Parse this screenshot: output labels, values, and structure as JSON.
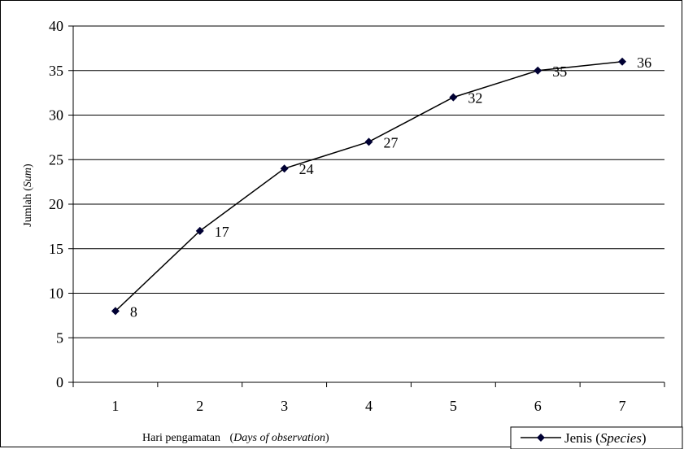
{
  "chart_data": {
    "type": "line",
    "x": [
      1,
      2,
      3,
      4,
      5,
      6,
      7
    ],
    "series": [
      {
        "name_main": "Jenis",
        "name_italic": "Species",
        "values": [
          8,
          17,
          24,
          27,
          32,
          35,
          36
        ],
        "color": "#000033"
      }
    ],
    "xlabel_main": "Hari pengamatan",
    "xlabel_italic": "Days of observation",
    "ylabel_main": "Jumlah",
    "ylabel_italic": "Sum",
    "ylim": [
      0,
      40
    ],
    "ytick_step": 5,
    "grid": true,
    "legend_position": "bottom-right",
    "line_color": "#000000"
  }
}
